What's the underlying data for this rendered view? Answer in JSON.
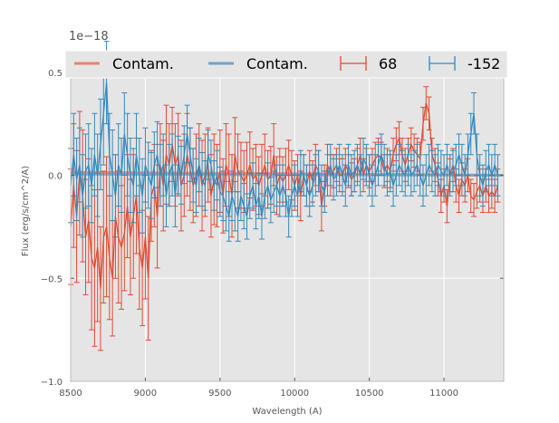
{
  "chart_data": {
    "type": "line",
    "title": "",
    "xlabel": "Wavelength (A)",
    "ylabel": "Flux (erg/s/cm^2/A)",
    "y_offset_label": "1e−18",
    "xlim": [
      8500,
      11400
    ],
    "ylim": [
      -1.0,
      0.6
    ],
    "xticks": [
      8500,
      9000,
      9500,
      10000,
      10500,
      11000
    ],
    "xtick_labels": [
      "8500",
      "9000",
      "9500",
      "10000",
      "10500",
      "11000"
    ],
    "yticks": [
      -1.0,
      -0.5,
      0.0,
      0.5
    ],
    "ytick_labels": [
      "−1.0",
      "−0.5",
      "0.0",
      "0.5"
    ],
    "grid": true,
    "legend_position": "top",
    "legend": [
      {
        "label": "Contam.",
        "kind": "line",
        "color": "#E8846C"
      },
      {
        "label": "Contam.",
        "kind": "line",
        "color": "#6FA4C8"
      },
      {
        "label": "68",
        "kind": "errorbar",
        "color": "#E24A33"
      },
      {
        "label": "-152",
        "kind": "errorbar",
        "color": "#348ABD"
      }
    ],
    "colors": {
      "background": "#E5E5E5",
      "grid": "#FFFFFF",
      "series_68": "#E24A33",
      "series_152": "#348ABD",
      "contam_68": "#E8846C",
      "contam_152": "#6FA4C8"
    },
    "series": [
      {
        "name": "68",
        "x_start": 8500,
        "x_step": 20,
        "y": [
          -0.25,
          -0.05,
          -0.2,
          0.01,
          -0.1,
          -0.3,
          -0.22,
          -0.4,
          -0.45,
          -0.35,
          -0.55,
          -0.3,
          -0.25,
          -0.4,
          -0.5,
          -0.2,
          -0.3,
          -0.35,
          -0.28,
          -0.15,
          -0.3,
          -0.2,
          -0.1,
          -0.35,
          -0.45,
          -0.3,
          -0.5,
          -0.1,
          -0.05,
          -0.2,
          0.05,
          -0.05,
          0.1,
          0.05,
          0.15,
          0.05,
          0.1,
          -0.05,
          0.0,
          0.1,
          0.03,
          -0.05,
          0.0,
          0.05,
          -0.05,
          0.0,
          0.05,
          -0.1,
          -0.02,
          -0.05,
          0.02,
          -0.1,
          0.05,
          0.0,
          -0.1,
          0.1,
          0.02,
          0.0,
          -0.03,
          0.0,
          0.05,
          -0.02,
          0.0,
          -0.05,
          0.0,
          0.05,
          -0.02,
          0.0,
          0.1,
          -0.05,
          0.0,
          -0.03,
          0.0,
          0.05,
          0.0,
          -0.05,
          0.0,
          -0.1,
          0.0,
          -0.05,
          0.02,
          -0.03,
          0.05,
          0.02,
          -0.15,
          -0.05,
          0.05,
          0.0,
          0.02,
          0.05,
          0.0,
          0.0,
          0.05,
          0.02,
          -0.02,
          0.0,
          0.05,
          0.1,
          0.0,
          0.05,
          0.02,
          0.05,
          0.08,
          0.1,
          0.08,
          0.02,
          0.05,
          0.02,
          0.1,
          0.15,
          0.18,
          0.1,
          0.05,
          0.1,
          0.15,
          0.12,
          0.1,
          0.08,
          0.25,
          0.35,
          0.3,
          0.1,
          0.05,
          -0.02,
          -0.1,
          -0.05,
          -0.15,
          0.0,
          0.05,
          -0.05,
          -0.1,
          -0.02,
          -0.05,
          0.0,
          -0.1,
          -0.12,
          -0.08,
          -0.05,
          -0.1,
          -0.05,
          -0.1,
          -0.08,
          -0.1,
          -0.05
        ],
        "err": [
          0.28,
          0.3,
          0.32,
          0.3,
          0.32,
          0.28,
          0.3,
          0.35,
          0.38,
          0.36,
          0.3,
          0.32,
          0.34,
          0.3,
          0.28,
          0.3,
          0.32,
          0.3,
          0.28,
          0.25,
          0.28,
          0.3,
          0.28,
          0.3,
          0.28,
          0.3,
          0.3,
          0.22,
          0.2,
          0.25,
          0.2,
          0.22,
          0.24,
          0.2,
          0.18,
          0.2,
          0.2,
          0.22,
          0.2,
          0.2,
          0.2,
          0.18,
          0.2,
          0.2,
          0.22,
          0.2,
          0.18,
          0.2,
          0.22,
          0.2,
          0.2,
          0.18,
          0.2,
          0.2,
          0.2,
          0.18,
          0.18,
          0.16,
          0.15,
          0.16,
          0.16,
          0.15,
          0.15,
          0.14,
          0.15,
          0.15,
          0.14,
          0.14,
          0.15,
          0.14,
          0.13,
          0.12,
          0.13,
          0.12,
          0.12,
          0.12,
          0.1,
          0.12,
          0.1,
          0.1,
          0.1,
          0.1,
          0.1,
          0.1,
          0.12,
          0.1,
          0.1,
          0.1,
          0.08,
          0.08,
          0.08,
          0.08,
          0.08,
          0.08,
          0.08,
          0.08,
          0.08,
          0.08,
          0.08,
          0.08,
          0.08,
          0.08,
          0.08,
          0.08,
          0.08,
          0.08,
          0.08,
          0.08,
          0.08,
          0.08,
          0.08,
          0.08,
          0.08,
          0.08,
          0.08,
          0.08,
          0.08,
          0.08,
          0.08,
          0.08,
          0.08,
          0.08,
          0.08,
          0.08,
          0.08,
          0.08,
          0.08,
          0.08,
          0.08,
          0.08,
          0.08,
          0.08,
          0.08,
          0.08,
          0.08,
          0.08,
          0.08,
          0.08,
          0.08,
          0.08,
          0.08,
          0.08,
          0.08,
          0.08
        ]
      },
      {
        "name": "-152",
        "x_start": 8500,
        "x_step": 20,
        "y": [
          -0.05,
          0.1,
          -0.02,
          0.05,
          -0.1,
          0.02,
          0.05,
          -0.05,
          0.1,
          0.0,
          0.15,
          0.3,
          0.45,
          0.1,
          0.0,
          -0.1,
          0.05,
          0.0,
          0.2,
          0.1,
          0.0,
          -0.05,
          0.1,
          0.0,
          -0.1,
          0.05,
          0.0,
          -0.05,
          0.05,
          0.1,
          0.0,
          0.05,
          -0.1,
          0.0,
          0.05,
          -0.1,
          0.05,
          0.0,
          0.1,
          0.2,
          0.1,
          0.0,
          -0.05,
          0.05,
          -0.02,
          -0.05,
          0.1,
          0.05,
          -0.05,
          0.0,
          -0.08,
          -0.1,
          -0.15,
          -0.2,
          -0.1,
          -0.15,
          -0.2,
          -0.1,
          -0.15,
          -0.2,
          -0.1,
          -0.05,
          -0.15,
          -0.1,
          -0.2,
          -0.1,
          -0.05,
          -0.12,
          -0.08,
          -0.05,
          -0.1,
          -0.05,
          -0.1,
          -0.2,
          -0.1,
          -0.05,
          -0.1,
          0.02,
          0.0,
          -0.05,
          -0.1,
          -0.05,
          0.0,
          0.02,
          -0.05,
          -0.08,
          0.0,
          0.05,
          -0.02,
          0.0,
          0.05,
          0.0,
          -0.05,
          0.05,
          0.0,
          0.02,
          0.05,
          0.0,
          0.08,
          0.05,
          0.0,
          -0.05,
          0.0,
          0.05,
          0.1,
          0.05,
          0.0,
          0.02,
          -0.05,
          0.0,
          0.05,
          0.02,
          0.0,
          0.05,
          0.0,
          0.02,
          0.05,
          0.0,
          -0.05,
          0.0,
          0.05,
          0.02,
          0.0,
          0.05,
          0.02,
          0.0,
          0.05,
          0.0,
          0.02,
          0.05,
          0.1,
          0.05,
          0.0,
          0.1,
          0.2,
          0.3,
          0.1,
          0.0,
          -0.05,
          0.02,
          0.05,
          0.0,
          0.05,
          0.0
        ],
        "err": [
          0.18,
          0.2,
          0.2,
          0.18,
          0.2,
          0.18,
          0.2,
          0.18,
          0.2,
          0.2,
          0.22,
          0.25,
          0.2,
          0.2,
          0.22,
          0.2,
          0.2,
          0.18,
          0.2,
          0.2,
          0.18,
          0.18,
          0.2,
          0.18,
          0.18,
          0.18,
          0.16,
          0.16,
          0.16,
          0.16,
          0.15,
          0.15,
          0.15,
          0.15,
          0.15,
          0.15,
          0.14,
          0.14,
          0.14,
          0.14,
          0.13,
          0.13,
          0.13,
          0.13,
          0.13,
          0.12,
          0.12,
          0.12,
          0.12,
          0.12,
          0.12,
          0.12,
          0.12,
          0.12,
          0.12,
          0.12,
          0.12,
          0.12,
          0.11,
          0.11,
          0.11,
          0.11,
          0.11,
          0.11,
          0.11,
          0.11,
          0.11,
          0.11,
          0.1,
          0.1,
          0.1,
          0.1,
          0.1,
          0.1,
          0.1,
          0.1,
          0.1,
          0.1,
          0.1,
          0.1,
          0.1,
          0.1,
          0.1,
          0.1,
          0.1,
          0.1,
          0.1,
          0.1,
          0.1,
          0.1,
          0.1,
          0.1,
          0.1,
          0.1,
          0.1,
          0.1,
          0.1,
          0.1,
          0.1,
          0.1,
          0.1,
          0.1,
          0.1,
          0.1,
          0.1,
          0.1,
          0.1,
          0.1,
          0.1,
          0.1,
          0.1,
          0.1,
          0.1,
          0.1,
          0.1,
          0.1,
          0.1,
          0.1,
          0.1,
          0.1,
          0.1,
          0.1,
          0.1,
          0.1,
          0.1,
          0.1,
          0.1,
          0.1,
          0.1,
          0.1,
          0.1,
          0.1,
          0.1,
          0.1,
          0.1,
          0.1,
          0.1,
          0.1,
          0.1,
          0.1,
          0.1,
          0.1,
          0.1,
          0.1
        ]
      },
      {
        "name": "Contam. 68",
        "x": [
          8500,
          11400
        ],
        "y": [
          0.015,
          0.0
        ]
      },
      {
        "name": "Contam. -152",
        "x": [
          8500,
          11400
        ],
        "y": [
          0.005,
          0.0
        ]
      }
    ]
  }
}
